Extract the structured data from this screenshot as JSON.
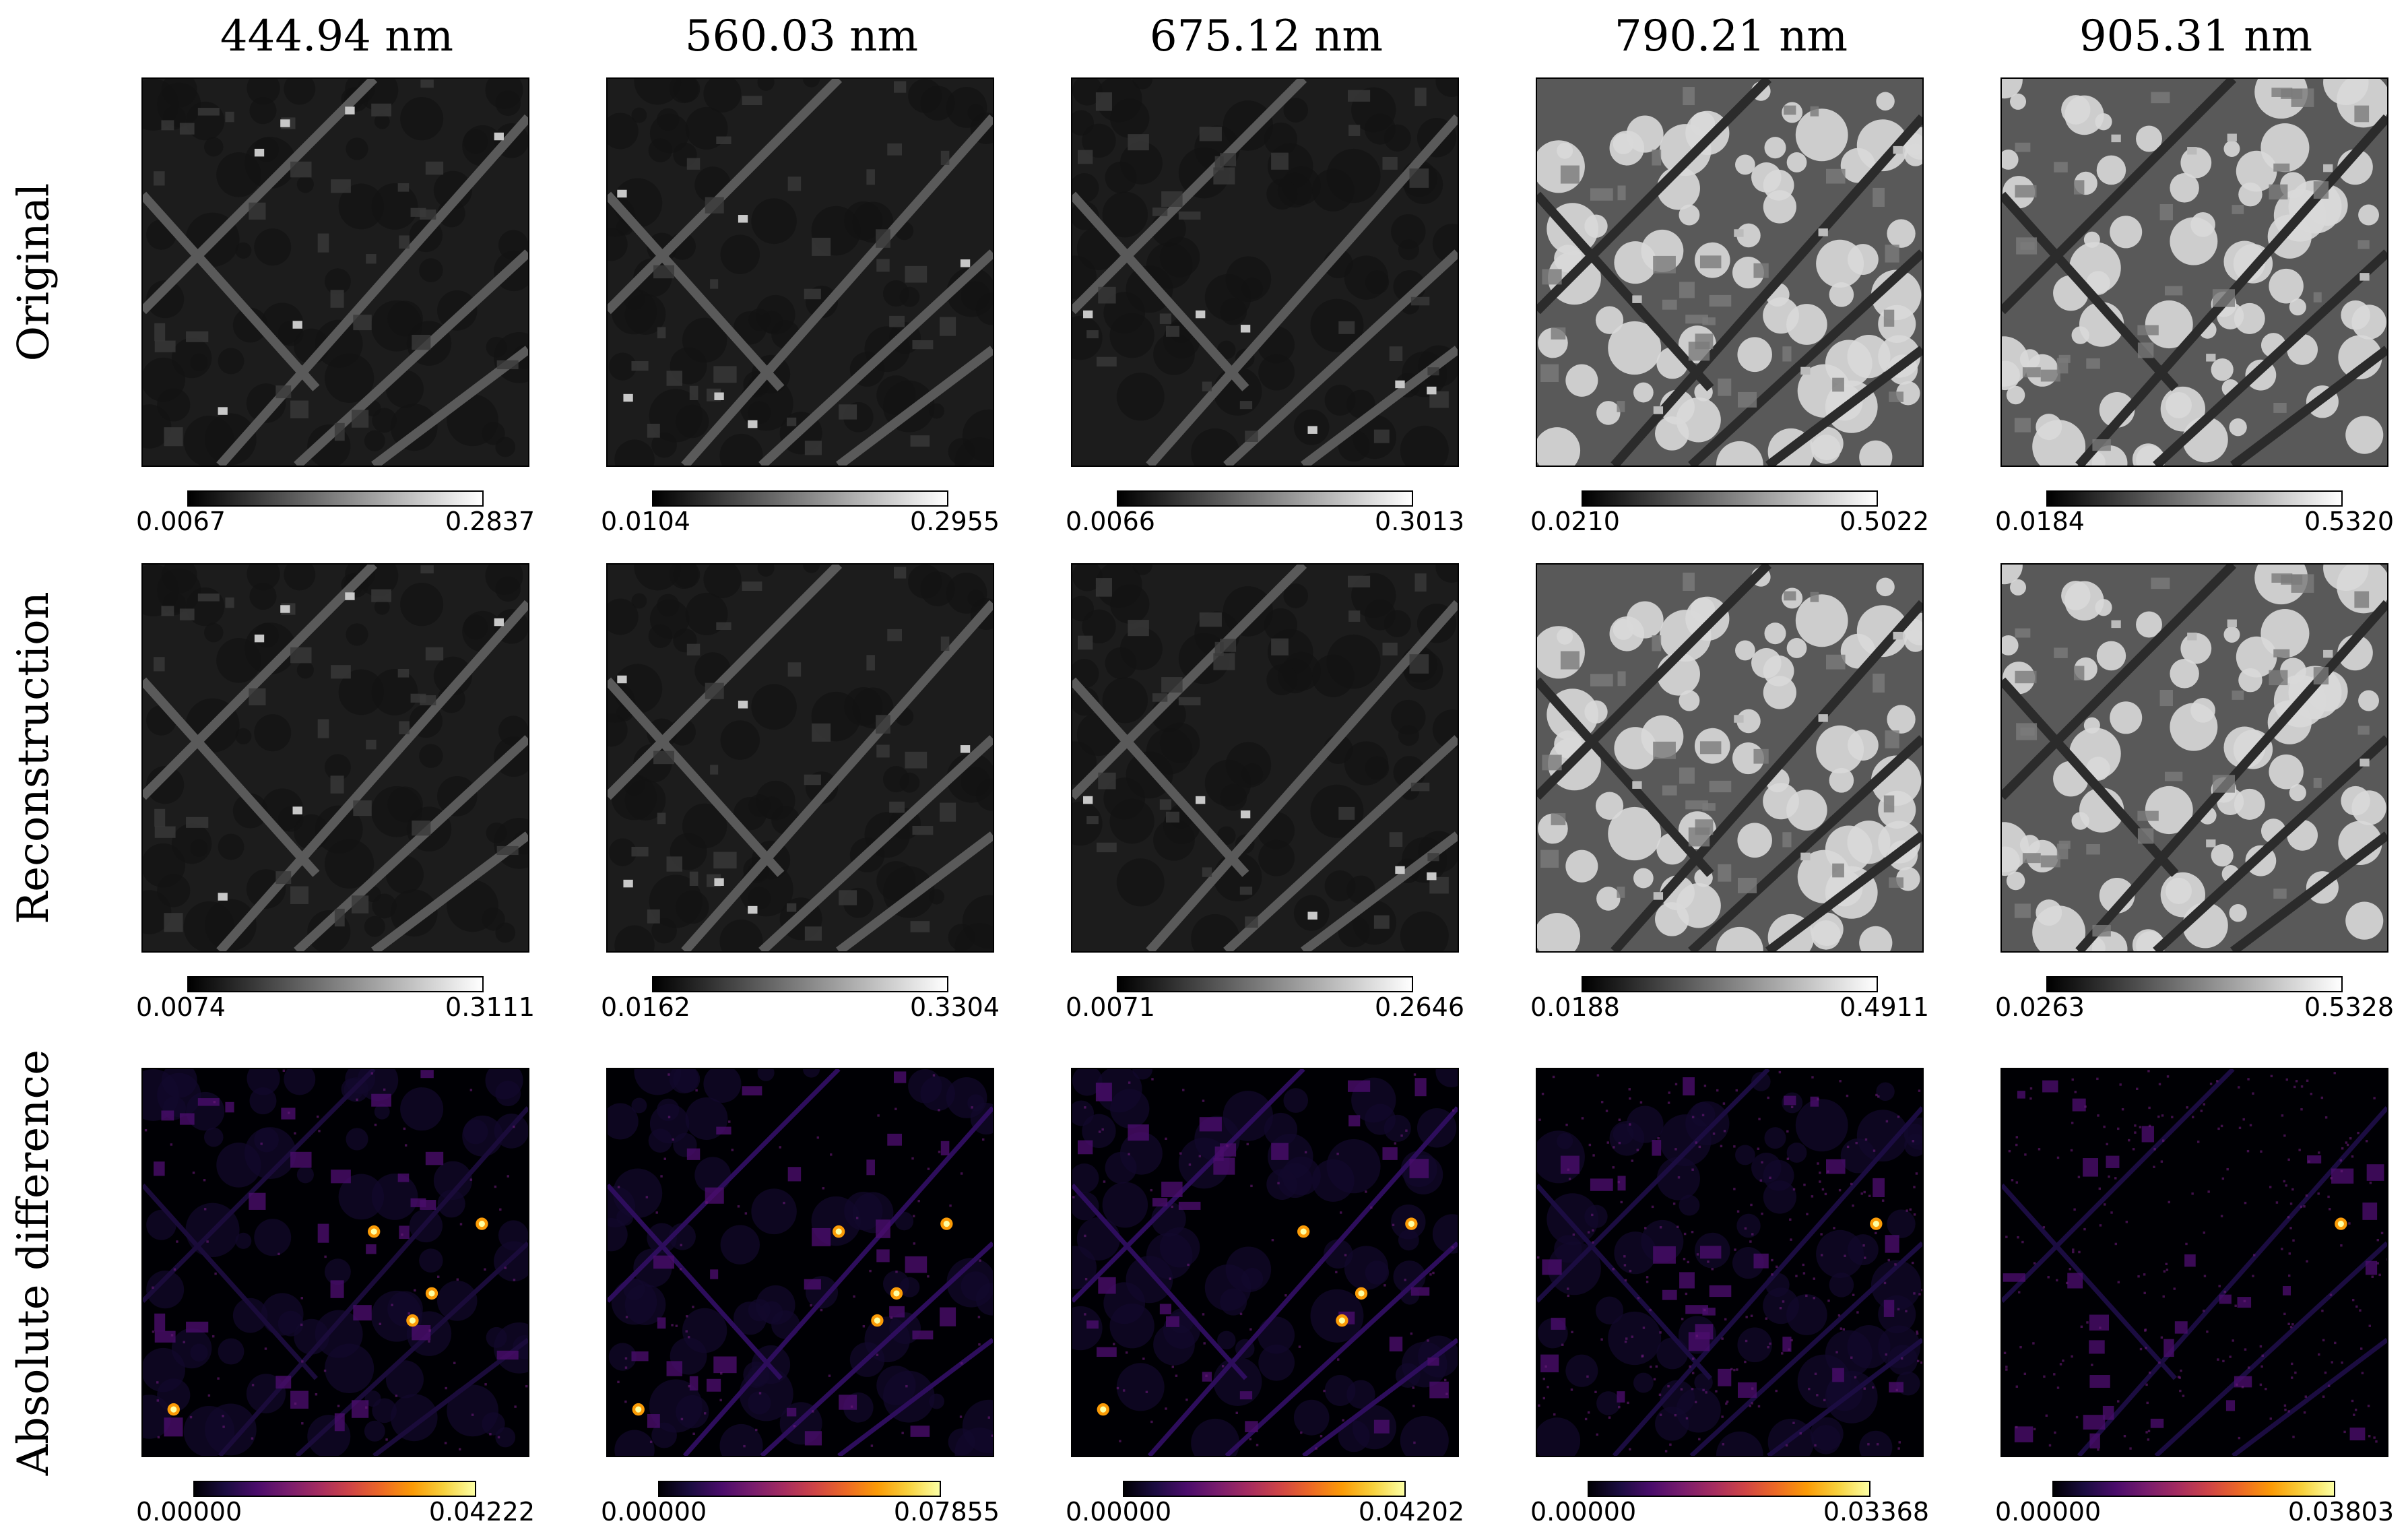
{
  "columns": [
    {
      "wavelength": "444.94 nm",
      "original": {
        "min": "0.0067",
        "max": "0.2837"
      },
      "reconstruction": {
        "min": "0.0074",
        "max": "0.3111"
      },
      "difference": {
        "min": "0.00000",
        "max": "0.04222"
      }
    },
    {
      "wavelength": "560.03 nm",
      "original": {
        "min": "0.0104",
        "max": "0.2955"
      },
      "reconstruction": {
        "min": "0.0162",
        "max": "0.3304"
      },
      "difference": {
        "min": "0.00000",
        "max": "0.07855"
      }
    },
    {
      "wavelength": "675.12 nm",
      "original": {
        "min": "0.0066",
        "max": "0.3013"
      },
      "reconstruction": {
        "min": "0.0071",
        "max": "0.2646"
      },
      "difference": {
        "min": "0.00000",
        "max": "0.04202"
      }
    },
    {
      "wavelength": "790.21 nm",
      "original": {
        "min": "0.0210",
        "max": "0.5022"
      },
      "reconstruction": {
        "min": "0.0188",
        "max": "0.4911"
      },
      "difference": {
        "min": "0.00000",
        "max": "0.03368"
      }
    },
    {
      "wavelength": "905.31 nm",
      "original": {
        "min": "0.0184",
        "max": "0.5320"
      },
      "reconstruction": {
        "min": "0.0263",
        "max": "0.5328"
      },
      "difference": {
        "min": "0.00000",
        "max": "0.03803"
      }
    }
  ],
  "rows": {
    "original": "Original",
    "reconstruction": "Reconstruction",
    "difference": "Absolute difference"
  },
  "colormaps": {
    "original": "gray",
    "reconstruction": "gray",
    "difference": "inferno"
  }
}
